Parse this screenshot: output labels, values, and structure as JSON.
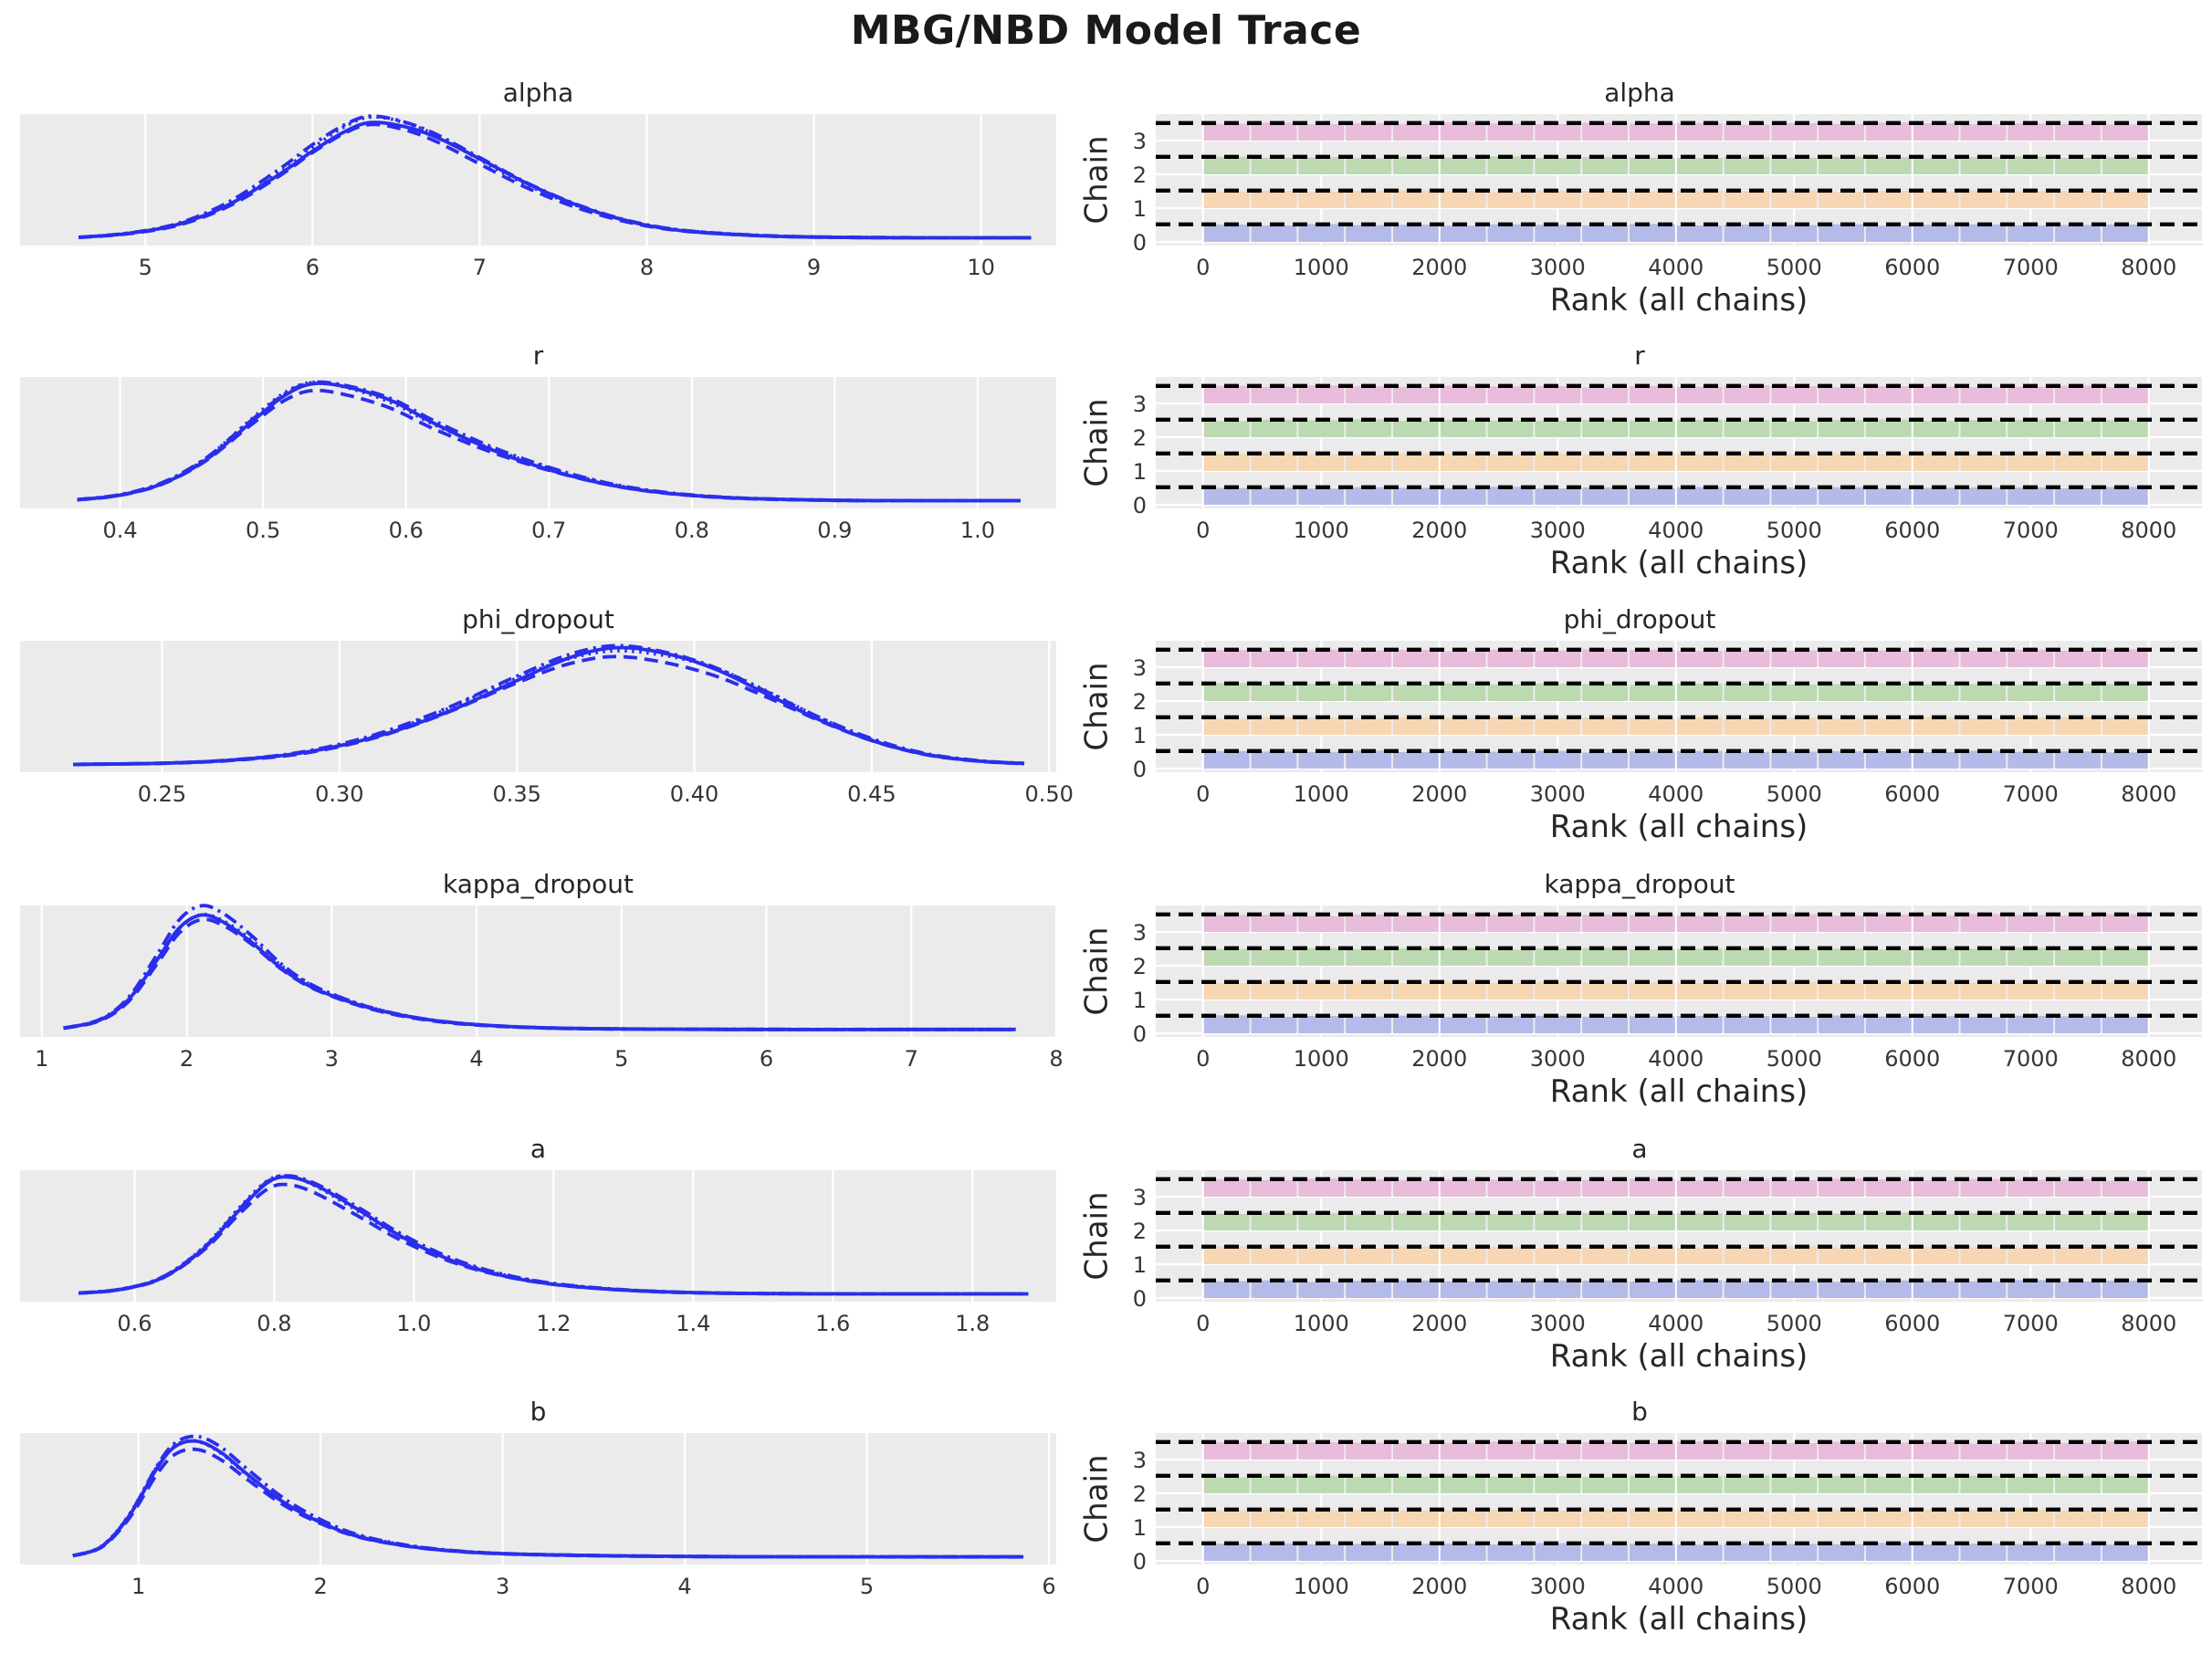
{
  "title": "MBG/NBD Model Trace",
  "style": {
    "axes_bg": "#ebebeb",
    "grid_color": "#ffffff",
    "kde_color": "#2a2eec",
    "dash_line_color": "#000000",
    "chain_fill_colors": [
      "#b5bbe8",
      "#f6d6b3",
      "#bdd9b1",
      "#e8bcda"
    ],
    "title_color": "#1a1a1a",
    "text_color": "#262626"
  },
  "chart_data": {
    "type": "line",
    "subtype": "arviz-trace-rank-grid",
    "rank_xlabel": "Rank (all chains)",
    "rank_ylabel": "Chain",
    "n_chains": 4,
    "rank_bins": 20,
    "rank_total_draws": 8000,
    "rank_x_ticks": [
      0,
      1000,
      2000,
      3000,
      4000,
      5000,
      6000,
      7000,
      8000
    ],
    "rank_x_tick_labels": [
      "0",
      "1000",
      "2000",
      "3000",
      "4000",
      "5000",
      "6000",
      "7000",
      "8000"
    ],
    "rank_x_range": [
      -400,
      8450
    ],
    "rank_y_ticks": [
      "0",
      "1",
      "2",
      "3"
    ],
    "chain_line_styles": [
      "solid",
      "dashed",
      "dashdot",
      "dotted"
    ],
    "chain_kde_variation": [
      {
        "scale": 1.0,
        "amp": 0.012,
        "freq": 2.0,
        "phase": 0.3
      },
      {
        "scale": 0.955,
        "amp": 0.028,
        "freq": 2.6,
        "phase": 1.4
      },
      {
        "scale": 1.045,
        "amp": 0.022,
        "freq": 1.9,
        "phase": 2.8
      },
      {
        "scale": 1.015,
        "amp": 0.03,
        "freq": 3.1,
        "phase": 4.2
      }
    ],
    "rank_uniform_height": 1.0,
    "rank_height_jitter": [
      [
        1.02,
        0.97,
        1.05,
        0.99,
        1.01,
        0.95,
        1.03,
        1.0,
        0.98,
        1.06,
        0.97,
        1.02,
        0.99,
        1.04,
        0.95,
        1.01,
        1.03,
        0.98,
        1.0,
        1.02
      ],
      [
        0.98,
        1.03,
        0.96,
        1.02,
        1.06,
        0.99,
        0.95,
        1.04,
        1.01,
        0.97,
        1.03,
        1.0,
        1.05,
        0.96,
        1.02,
        0.98,
        1.04,
        0.99,
        1.01,
        0.97
      ],
      [
        1.04,
        0.98,
        1.01,
        0.95,
        1.03,
        1.0,
        1.06,
        0.97,
        1.02,
        0.99,
        0.96,
        1.04,
        0.98,
        1.03,
        1.01,
        0.94,
        1.02,
        1.05,
        0.97,
        1.0
      ],
      [
        0.99,
        1.05,
        0.96,
        1.03,
        0.98,
        1.06,
        1.01,
        0.97,
        1.04,
        1.0,
        1.02,
        0.94,
        1.03,
        0.98,
        1.06,
        1.02,
        0.96,
        1.01,
        0.99,
        0.95
      ]
    ],
    "rows": [
      {
        "param": "alpha",
        "kde": {
          "x_range": [
            4.25,
            10.45
          ],
          "x_ticks": [
            5,
            6,
            7,
            8,
            9,
            10
          ],
          "x_tick_labels": [
            "5",
            "6",
            "7",
            "8",
            "9",
            "10"
          ],
          "peak_x": 6.35,
          "curve": [
            [
              4.6,
              0.015
            ],
            [
              4.9,
              0.05
            ],
            [
              5.2,
              0.13
            ],
            [
              5.5,
              0.3
            ],
            [
              5.8,
              0.56
            ],
            [
              6.0,
              0.76
            ],
            [
              6.2,
              0.93
            ],
            [
              6.35,
              1.0
            ],
            [
              6.55,
              0.96
            ],
            [
              6.75,
              0.86
            ],
            [
              7.0,
              0.68
            ],
            [
              7.3,
              0.46
            ],
            [
              7.6,
              0.28
            ],
            [
              7.9,
              0.15
            ],
            [
              8.2,
              0.075
            ],
            [
              8.6,
              0.035
            ],
            [
              9.0,
              0.018
            ],
            [
              9.6,
              0.012
            ],
            [
              10.3,
              0.012
            ]
          ]
        }
      },
      {
        "param": "r",
        "kde": {
          "x_range": [
            0.33,
            1.055
          ],
          "x_ticks": [
            0.4,
            0.5,
            0.6,
            0.7,
            0.8,
            0.9,
            1.0
          ],
          "x_tick_labels": [
            "0.4",
            "0.5",
            "0.6",
            "0.7",
            "0.8",
            "0.9",
            "1.0"
          ],
          "peak_x": 0.535,
          "curve": [
            [
              0.37,
              0.02
            ],
            [
              0.4,
              0.06
            ],
            [
              0.43,
              0.16
            ],
            [
              0.46,
              0.36
            ],
            [
              0.49,
              0.66
            ],
            [
              0.515,
              0.9
            ],
            [
              0.535,
              1.0
            ],
            [
              0.56,
              0.97
            ],
            [
              0.59,
              0.86
            ],
            [
              0.62,
              0.67
            ],
            [
              0.66,
              0.45
            ],
            [
              0.7,
              0.28
            ],
            [
              0.74,
              0.155
            ],
            [
              0.78,
              0.08
            ],
            [
              0.83,
              0.035
            ],
            [
              0.9,
              0.015
            ],
            [
              0.96,
              0.012
            ],
            [
              1.03,
              0.012
            ]
          ]
        }
      },
      {
        "param": "phi_dropout",
        "kde": {
          "x_range": [
            0.21,
            0.502
          ],
          "x_ticks": [
            0.25,
            0.3,
            0.35,
            0.4,
            0.45,
            0.5
          ],
          "x_tick_labels": [
            "0.25",
            "0.30",
            "0.35",
            "0.40",
            "0.45",
            "0.50"
          ],
          "peak_x": 0.378,
          "curve": [
            [
              0.225,
              0.012
            ],
            [
              0.25,
              0.022
            ],
            [
              0.27,
              0.05
            ],
            [
              0.29,
              0.115
            ],
            [
              0.31,
              0.25
            ],
            [
              0.33,
              0.46
            ],
            [
              0.35,
              0.73
            ],
            [
              0.365,
              0.92
            ],
            [
              0.378,
              1.0
            ],
            [
              0.392,
              0.95
            ],
            [
              0.406,
              0.82
            ],
            [
              0.42,
              0.62
            ],
            [
              0.435,
              0.4
            ],
            [
              0.45,
              0.22
            ],
            [
              0.465,
              0.1
            ],
            [
              0.48,
              0.042
            ],
            [
              0.493,
              0.02
            ]
          ]
        }
      },
      {
        "param": "kappa_dropout",
        "kde": {
          "x_range": [
            0.85,
            8.0
          ],
          "x_ticks": [
            1,
            2,
            3,
            4,
            5,
            6,
            7,
            8
          ],
          "x_tick_labels": [
            "1",
            "2",
            "3",
            "4",
            "5",
            "6",
            "7",
            "8"
          ],
          "peak_x": 2.1,
          "curve": [
            [
              1.15,
              0.02
            ],
            [
              1.4,
              0.09
            ],
            [
              1.6,
              0.27
            ],
            [
              1.8,
              0.62
            ],
            [
              1.95,
              0.89
            ],
            [
              2.1,
              1.0
            ],
            [
              2.25,
              0.94
            ],
            [
              2.45,
              0.76
            ],
            [
              2.65,
              0.54
            ],
            [
              2.85,
              0.38
            ],
            [
              3.1,
              0.255
            ],
            [
              3.35,
              0.165
            ],
            [
              3.65,
              0.095
            ],
            [
              4.0,
              0.05
            ],
            [
              4.5,
              0.022
            ],
            [
              5.2,
              0.012
            ],
            [
              6.2,
              0.009
            ],
            [
              7.0,
              0.009
            ],
            [
              7.72,
              0.009
            ]
          ]
        }
      },
      {
        "param": "a",
        "kde": {
          "x_range": [
            0.436,
            1.92
          ],
          "x_ticks": [
            0.6,
            0.8,
            1.0,
            1.2,
            1.4,
            1.6,
            1.8
          ],
          "x_tick_labels": [
            "0.6",
            "0.8",
            "1.0",
            "1.2",
            "1.4",
            "1.6",
            "1.8"
          ],
          "peak_x": 0.82,
          "curve": [
            [
              0.52,
              0.018
            ],
            [
              0.58,
              0.05
            ],
            [
              0.64,
              0.15
            ],
            [
              0.7,
              0.4
            ],
            [
              0.75,
              0.72
            ],
            [
              0.79,
              0.95
            ],
            [
              0.82,
              1.0
            ],
            [
              0.86,
              0.93
            ],
            [
              0.92,
              0.73
            ],
            [
              0.98,
              0.51
            ],
            [
              1.05,
              0.31
            ],
            [
              1.12,
              0.18
            ],
            [
              1.2,
              0.095
            ],
            [
              1.3,
              0.045
            ],
            [
              1.42,
              0.02
            ],
            [
              1.6,
              0.012
            ],
            [
              1.88,
              0.012
            ]
          ]
        }
      },
      {
        "param": "b",
        "kde": {
          "x_range": [
            0.35,
            6.04
          ],
          "x_ticks": [
            1,
            2,
            3,
            4,
            5,
            6
          ],
          "x_tick_labels": [
            "1",
            "2",
            "3",
            "4",
            "5",
            "6"
          ],
          "peak_x": 1.32,
          "curve": [
            [
              0.64,
              0.02
            ],
            [
              0.8,
              0.1
            ],
            [
              0.95,
              0.36
            ],
            [
              1.1,
              0.76
            ],
            [
              1.2,
              0.95
            ],
            [
              1.32,
              1.0
            ],
            [
              1.45,
              0.91
            ],
            [
              1.6,
              0.72
            ],
            [
              1.8,
              0.48
            ],
            [
              2.0,
              0.31
            ],
            [
              2.2,
              0.19
            ],
            [
              2.45,
              0.11
            ],
            [
              2.7,
              0.065
            ],
            [
              3.0,
              0.038
            ],
            [
              3.5,
              0.022
            ],
            [
              4.2,
              0.013
            ],
            [
              5.0,
              0.011
            ],
            [
              5.86,
              0.011
            ]
          ]
        }
      }
    ]
  }
}
